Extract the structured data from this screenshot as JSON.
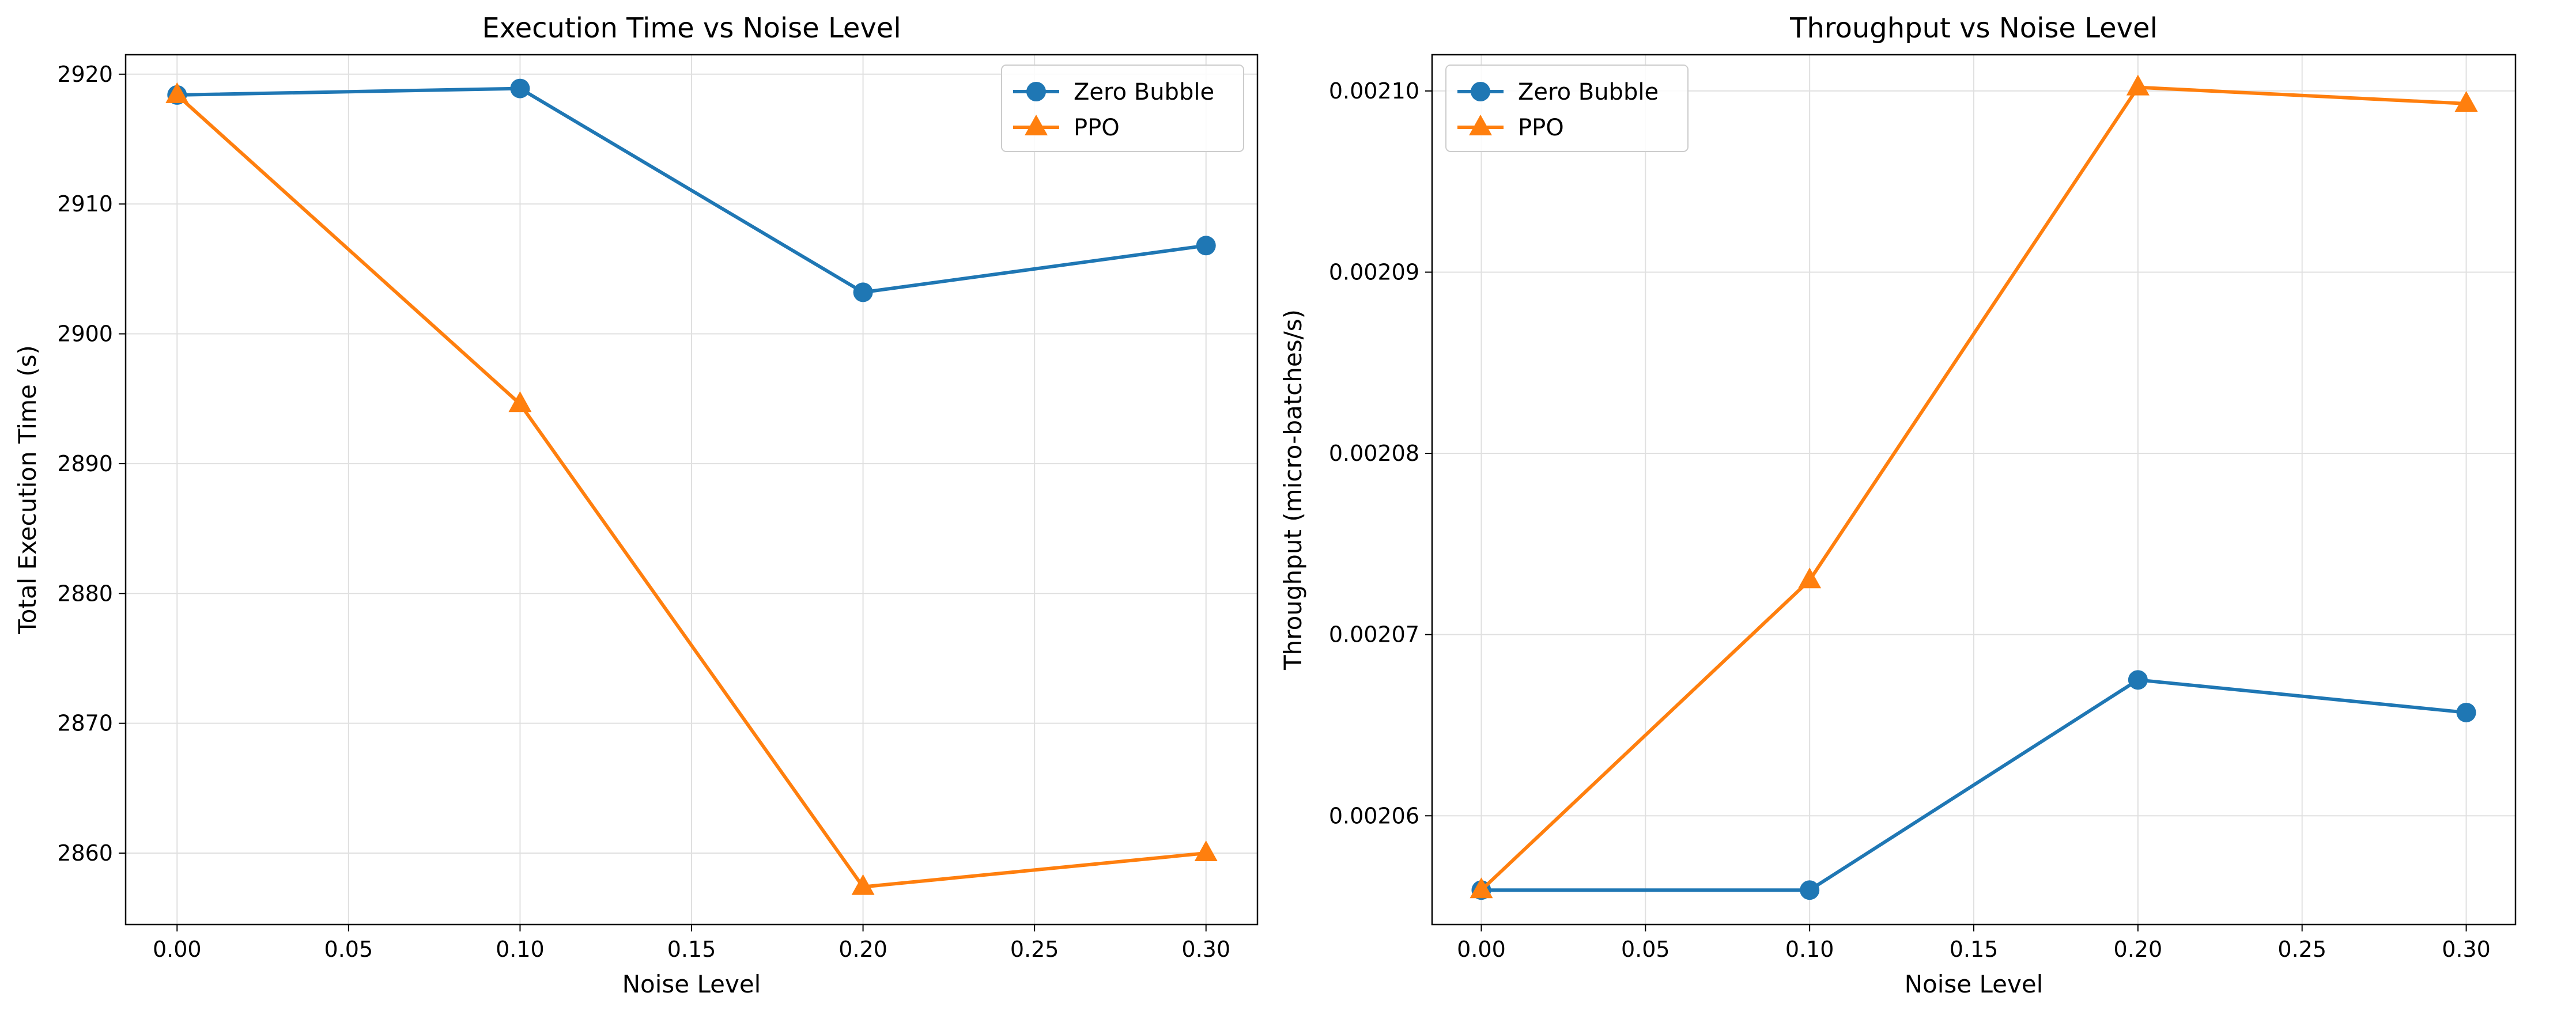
{
  "chart_data": [
    {
      "type": "line",
      "title": "Execution Time vs Noise Level",
      "xlabel": "Noise Level",
      "ylabel": "Total Execution Time (s)",
      "x": [
        0.0,
        0.1,
        0.2,
        0.3
      ],
      "xlim": [
        -0.015,
        0.315
      ],
      "ylim": [
        2854.5,
        2921.5
      ],
      "xticks": [
        "0.00",
        "0.05",
        "0.10",
        "0.15",
        "0.20",
        "0.25",
        "0.30"
      ],
      "yticks": [
        "2860",
        "2870",
        "2880",
        "2890",
        "2900",
        "2910",
        "2920"
      ],
      "grid": true,
      "legend": "top-right",
      "series": [
        {
          "name": "Zero Bubble",
          "color": "#1f77b4",
          "marker": "circle",
          "values": [
            2918.4,
            2918.9,
            2903.2,
            2906.8
          ]
        },
        {
          "name": "PPO",
          "color": "#ff7f0e",
          "marker": "triangle",
          "values": [
            2918.4,
            2894.6,
            2857.4,
            2860.0
          ]
        }
      ]
    },
    {
      "type": "line",
      "title": "Throughput vs Noise Level",
      "xlabel": "Noise Level",
      "ylabel": "Throughput (micro-batches/s)",
      "x": [
        0.0,
        0.1,
        0.2,
        0.3
      ],
      "xlim": [
        -0.015,
        0.315
      ],
      "ylim": [
        0.002054,
        0.002102
      ],
      "xticks": [
        "0.00",
        "0.05",
        "0.10",
        "0.15",
        "0.20",
        "0.25",
        "0.30"
      ],
      "yticks": [
        "0.00206",
        "0.00207",
        "0.00208",
        "0.00209",
        "0.00210"
      ],
      "grid": true,
      "legend": "top-left",
      "series": [
        {
          "name": "Zero Bubble",
          "color": "#1f77b4",
          "marker": "circle",
          "values": [
            0.0020559,
            0.0020559,
            0.0020675,
            0.0020657
          ]
        },
        {
          "name": "PPO",
          "color": "#ff7f0e",
          "marker": "triangle",
          "values": [
            0.0020559,
            0.002073,
            0.0021002,
            0.0020993
          ]
        }
      ]
    }
  ]
}
